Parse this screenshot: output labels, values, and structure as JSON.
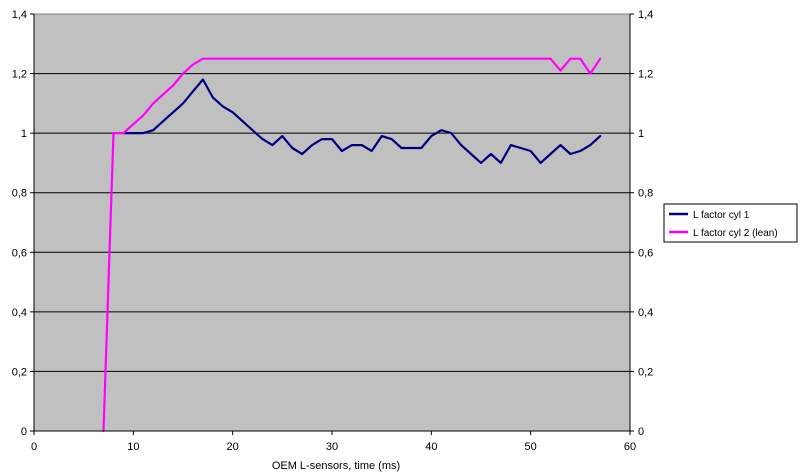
{
  "chart_data": {
    "type": "line",
    "title": "",
    "xlabel": "OEM L-sensors,  time (ms)",
    "ylabel": "",
    "xlim": [
      0,
      60
    ],
    "ylim": [
      0,
      1.4
    ],
    "x_ticks": [
      "0",
      "10",
      "20",
      "30",
      "40",
      "50",
      "60"
    ],
    "y_ticks": [
      "0",
      "0,2",
      "0,4",
      "0,6",
      "0,8",
      "1",
      "1,2",
      "1,4"
    ],
    "y_ticks_right": [
      "0",
      "0,2",
      "0,4",
      "0,6",
      "0,8",
      "1",
      "1,2",
      "1,4"
    ],
    "grid": "horizontal",
    "plot_background": "#C0C0C0",
    "legend_position": "right",
    "series": [
      {
        "name": "L factor cyl 1",
        "color": "#000080",
        "x": [
          9,
          10,
          11,
          12,
          13,
          14,
          15,
          16,
          17,
          18,
          19,
          20,
          21,
          22,
          23,
          24,
          25,
          26,
          27,
          28,
          29,
          30,
          31,
          32,
          33,
          34,
          35,
          36,
          37,
          38,
          39,
          40,
          41,
          42,
          43,
          44,
          45,
          46,
          47,
          48,
          49,
          50,
          51,
          52,
          53,
          54,
          55,
          56,
          57
        ],
        "values": [
          1.0,
          1.0,
          1.0,
          1.01,
          1.04,
          1.07,
          1.1,
          1.14,
          1.18,
          1.12,
          1.09,
          1.07,
          1.04,
          1.01,
          0.98,
          0.96,
          0.99,
          0.95,
          0.93,
          0.96,
          0.98,
          0.98,
          0.94,
          0.96,
          0.96,
          0.94,
          0.99,
          0.98,
          0.95,
          0.95,
          0.95,
          0.99,
          1.01,
          1.0,
          0.96,
          0.93,
          0.9,
          0.93,
          0.9,
          0.96,
          0.95,
          0.94,
          0.9,
          0.93,
          0.96,
          0.93,
          0.94,
          0.96,
          0.99
        ]
      },
      {
        "name": "L factor cyl 2 (lean)",
        "color": "#FF00FF",
        "x": [
          7,
          8,
          9,
          10,
          11,
          12,
          13,
          14,
          15,
          16,
          17,
          18,
          19,
          20,
          25,
          30,
          35,
          40,
          45,
          50,
          52,
          53,
          54,
          55,
          56,
          57
        ],
        "values": [
          0.0,
          1.0,
          1.0,
          1.03,
          1.06,
          1.1,
          1.13,
          1.16,
          1.2,
          1.23,
          1.25,
          1.25,
          1.25,
          1.25,
          1.25,
          1.25,
          1.25,
          1.25,
          1.25,
          1.25,
          1.25,
          1.21,
          1.25,
          1.25,
          1.2,
          1.25
        ]
      }
    ]
  }
}
